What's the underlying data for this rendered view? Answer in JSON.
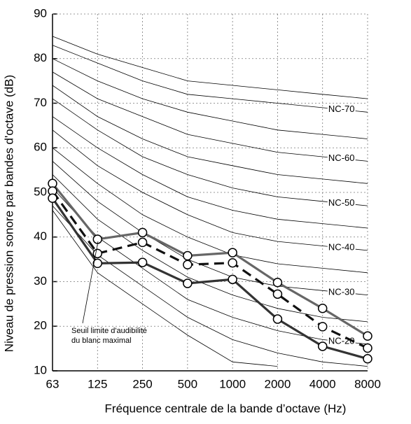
{
  "chart_data": {
    "type": "line",
    "ylabel": "Niveau de pression sonore par bandes d'octave (dB)",
    "xlabel": "Fréquence centrale de la bande d’octave (Hz)",
    "categories": [
      "63",
      "125",
      "250",
      "500",
      "1000",
      "2000",
      "4000",
      "8000"
    ],
    "ylim": [
      10,
      90
    ],
    "yticks": [
      10,
      20,
      30,
      40,
      50,
      60,
      70,
      80,
      90
    ],
    "grid": true,
    "curve_color": "#000000",
    "nc_curves": [
      {
        "values": [
          47,
          36,
          29,
          22,
          17,
          14,
          12,
          11
        ]
      },
      {
        "label": "NC-20",
        "values": [
          51,
          40,
          33,
          26,
          22,
          19,
          17,
          16
        ]
      },
      {
        "values": [
          54,
          44,
          37,
          31,
          27,
          24,
          22,
          21
        ]
      },
      {
        "label": "NC-30",
        "values": [
          57,
          48,
          41,
          35,
          31,
          29,
          28,
          27
        ]
      },
      {
        "values": [
          60,
          52,
          45,
          40,
          36,
          34,
          33,
          32
        ]
      },
      {
        "label": "NC-40",
        "values": [
          64,
          56,
          50,
          45,
          41,
          39,
          38,
          37
        ]
      },
      {
        "values": [
          67,
          60,
          54,
          49,
          46,
          44,
          43,
          42
        ]
      },
      {
        "label": "NC-50",
        "values": [
          71,
          64,
          58,
          54,
          51,
          49,
          48,
          47
        ]
      },
      {
        "values": [
          74,
          67,
          62,
          58,
          56,
          54,
          53,
          52
        ]
      },
      {
        "label": "NC-60",
        "values": [
          77,
          71,
          67,
          63,
          61,
          59,
          58,
          57
        ]
      },
      {
        "values": [
          80,
          75,
          71,
          68,
          66,
          64,
          63,
          62
        ]
      },
      {
        "label": "NC-70",
        "values": [
          83,
          79,
          75,
          72,
          71,
          70,
          69,
          68
        ]
      },
      {
        "values": [
          85,
          81,
          78,
          75,
          74,
          73,
          72,
          71
        ]
      }
    ],
    "threshold": {
      "values": [
        46,
        32,
        25,
        18,
        12,
        11,
        null,
        null
      ]
    },
    "annotation": [
      "Seuil limite d'audibilité",
      "du blanc maximal"
    ],
    "series": [
      {
        "color": "#666666",
        "line_style": "solid",
        "values": [
          52,
          39.5,
          41,
          35.8,
          36.5,
          29.8,
          24,
          17.8
        ]
      },
      {
        "color": "#111111",
        "line_style": "dashed",
        "values": [
          50.3,
          36.3,
          38.8,
          33.8,
          34.2,
          27.2,
          19.9,
          15.1
        ]
      },
      {
        "color": "#333333",
        "line_style": "solid",
        "values": [
          48.7,
          34.1,
          34.3,
          29.6,
          30.5,
          21.6,
          15.5,
          12.7
        ]
      }
    ]
  }
}
